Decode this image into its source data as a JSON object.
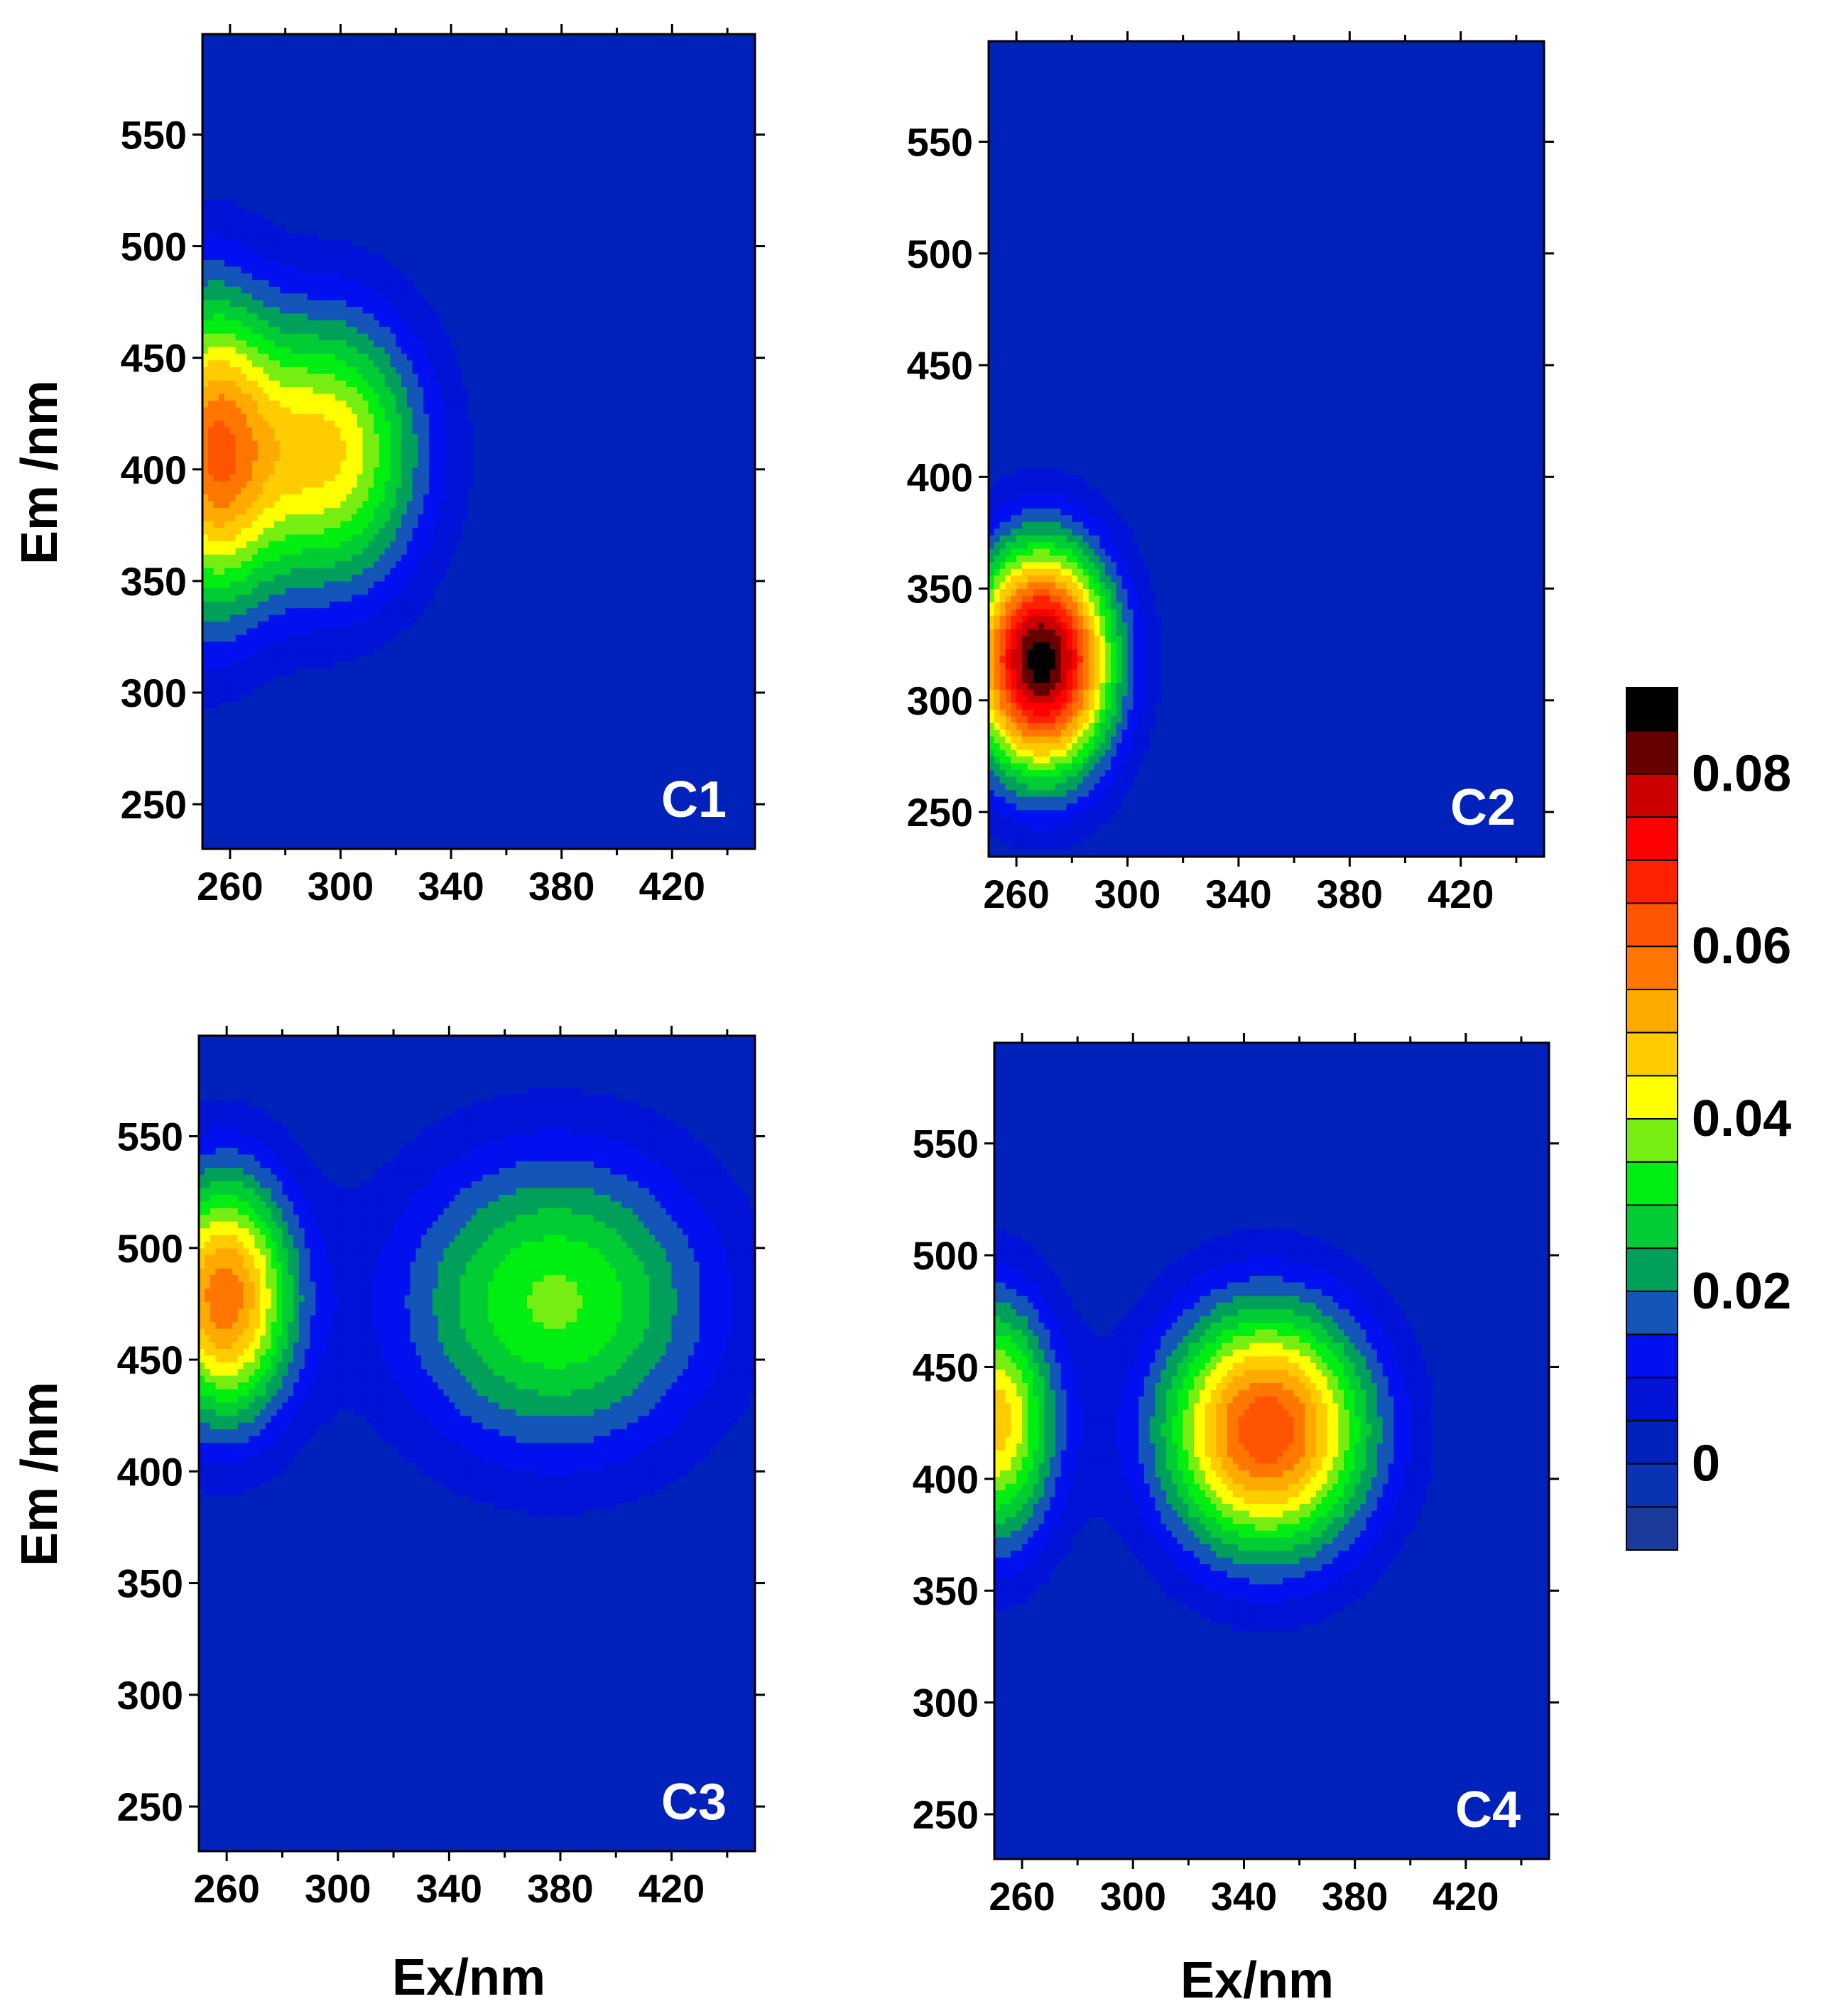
{
  "chart_data": [
    {
      "type": "heatmap",
      "panel_label": "C1",
      "xlabel": "",
      "ylabel": "Em /nm",
      "xlim": [
        250,
        450
      ],
      "ylim": [
        230,
        595
      ],
      "xticks": [
        260,
        300,
        340,
        380,
        420
      ],
      "yticks": [
        250,
        300,
        350,
        400,
        450,
        500,
        550
      ],
      "peaks": [
        {
          "ex": 252,
          "em": 408,
          "value": 0.05,
          "sx": 16,
          "sy": 52
        },
        {
          "ex": 295,
          "em": 408,
          "value": 0.046,
          "sx": 25,
          "sy": 45
        }
      ]
    },
    {
      "type": "heatmap",
      "panel_label": "C2",
      "xlabel": "",
      "ylabel": "",
      "xlim": [
        250,
        450
      ],
      "ylim": [
        230,
        595
      ],
      "xticks": [
        260,
        300,
        340,
        380,
        420
      ],
      "yticks": [
        250,
        300,
        350,
        400,
        450,
        500,
        550
      ],
      "peaks": [
        {
          "ex": 269,
          "em": 318,
          "value": 0.088,
          "sx": 18,
          "sy": 36
        }
      ]
    },
    {
      "type": "heatmap",
      "panel_label": "C3",
      "xlabel": "Ex/nm",
      "ylabel": "Em /nm",
      "xlim": [
        250,
        450
      ],
      "ylim": [
        230,
        595
      ],
      "xticks": [
        260,
        300,
        340,
        380,
        420
      ],
      "yticks": [
        250,
        300,
        350,
        400,
        450,
        500,
        550
      ],
      "peaks": [
        {
          "ex": 259,
          "em": 478,
          "value": 0.058,
          "sx": 18,
          "sy": 40
        },
        {
          "ex": 378,
          "em": 476,
          "value": 0.036,
          "sx": 40,
          "sy": 48
        }
      ]
    },
    {
      "type": "heatmap",
      "panel_label": "C4",
      "xlabel": "Ex/nm",
      "ylabel": "",
      "xlim": [
        250,
        450
      ],
      "ylim": [
        230,
        595
      ],
      "xticks": [
        260,
        300,
        340,
        380,
        420
      ],
      "yticks": [
        250,
        300,
        350,
        400,
        450,
        500,
        550
      ],
      "peaks": [
        {
          "ex": 250,
          "em": 426,
          "value": 0.048,
          "sx": 16,
          "sy": 40
        },
        {
          "ex": 348,
          "em": 422,
          "value": 0.064,
          "sx": 27,
          "sy": 40
        }
      ]
    }
  ],
  "colorbar": {
    "min": -0.01,
    "max": 0.09,
    "tick_values": [
      0,
      0.02,
      0.04,
      0.06,
      0.08
    ],
    "tick_labels": [
      "0",
      "0.02",
      "0.04",
      "0.06",
      "0.08"
    ],
    "levels": [
      {
        "from": -0.01,
        "color": "#1a3a9c"
      },
      {
        "from": -0.005,
        "color": "#0a33b3"
      },
      {
        "from": 0.0,
        "color": "#0022bb"
      },
      {
        "from": 0.005,
        "color": "#0013d6"
      },
      {
        "from": 0.01,
        "color": "#0010ee"
      },
      {
        "from": 0.015,
        "color": "#1456b8"
      },
      {
        "from": 0.02,
        "color": "#00a05a"
      },
      {
        "from": 0.025,
        "color": "#00cc33"
      },
      {
        "from": 0.03,
        "color": "#00ee11"
      },
      {
        "from": 0.035,
        "color": "#77ee11"
      },
      {
        "from": 0.04,
        "color": "#ffff00"
      },
      {
        "from": 0.045,
        "color": "#ffcc00"
      },
      {
        "from": 0.05,
        "color": "#ffaa00"
      },
      {
        "from": 0.055,
        "color": "#ff7700"
      },
      {
        "from": 0.06,
        "color": "#ff5500"
      },
      {
        "from": 0.065,
        "color": "#ff2200"
      },
      {
        "from": 0.07,
        "color": "#ff0000"
      },
      {
        "from": 0.075,
        "color": "#cc0000"
      },
      {
        "from": 0.08,
        "color": "#660000"
      },
      {
        "from": 0.085,
        "color": "#000000"
      }
    ]
  }
}
